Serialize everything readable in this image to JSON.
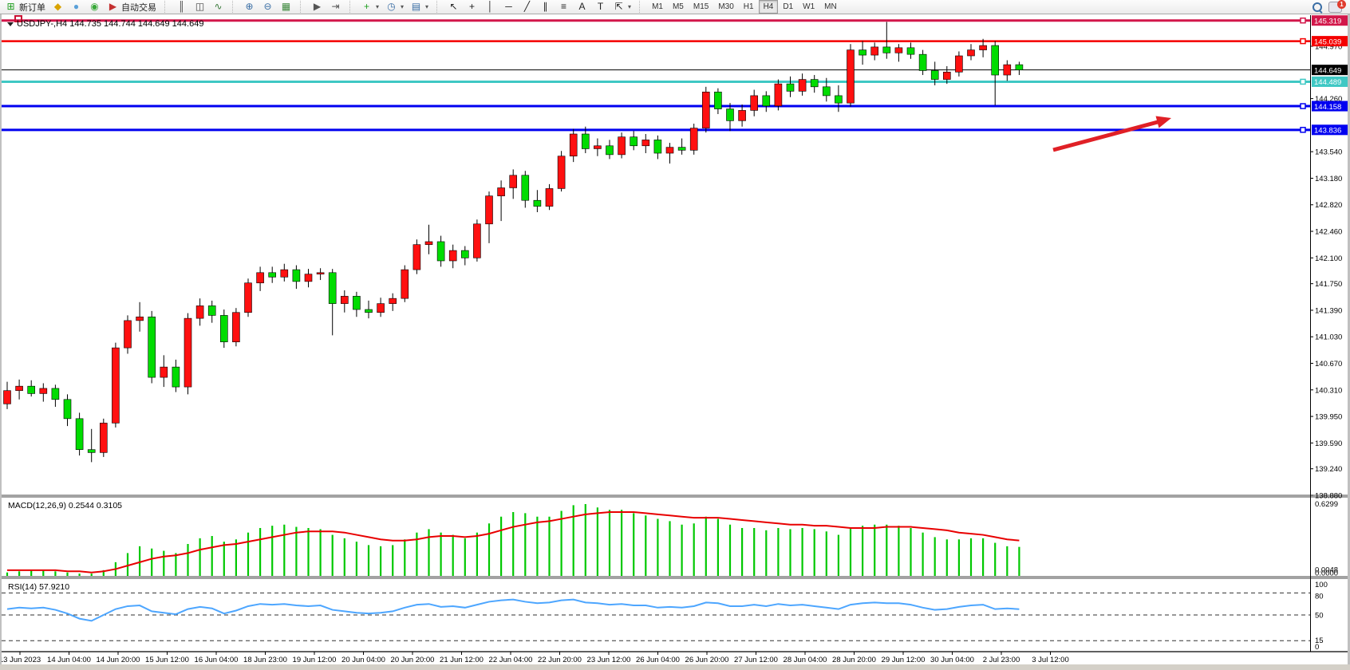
{
  "toolbar": {
    "groups": [
      {
        "items": [
          {
            "name": "new-order",
            "icon": "new-order",
            "label": "新订单"
          },
          {
            "name": "metaeditor",
            "icon": "metaeditor"
          },
          {
            "name": "community",
            "icon": "community"
          },
          {
            "name": "signals",
            "icon": "signals"
          },
          {
            "name": "autotrading",
            "icon": "autotrading",
            "label": "自动交易"
          }
        ]
      },
      {
        "items": [
          {
            "name": "bar-chart",
            "icon": "bar-chart"
          },
          {
            "name": "candlestick-chart",
            "icon": "candle-chart"
          },
          {
            "name": "line-chart",
            "icon": "line-chart"
          }
        ]
      },
      {
        "items": [
          {
            "name": "zoom-in",
            "icon": "zoom-in"
          },
          {
            "name": "zoom-out",
            "icon": "zoom-out"
          },
          {
            "name": "tile-windows",
            "icon": "tile"
          }
        ]
      },
      {
        "items": [
          {
            "name": "auto-scroll",
            "icon": "auto-scroll"
          },
          {
            "name": "chart-shift",
            "icon": "chart-shift"
          }
        ]
      },
      {
        "items": [
          {
            "name": "indicators",
            "icon": "indicators",
            "dropdown": true
          },
          {
            "name": "periods",
            "icon": "clock",
            "dropdown": true
          },
          {
            "name": "templates",
            "icon": "template",
            "dropdown": true
          }
        ]
      },
      {
        "items": [
          {
            "name": "cursor",
            "icon": "cursor"
          },
          {
            "name": "crosshair",
            "icon": "crosshair"
          },
          {
            "name": "vertical-line",
            "icon": "vline"
          },
          {
            "name": "horizontal-line",
            "icon": "hline"
          },
          {
            "name": "trendline",
            "icon": "trendline"
          },
          {
            "name": "equidistant-channel",
            "icon": "channel"
          },
          {
            "name": "fibonacci",
            "icon": "fibo"
          },
          {
            "name": "text",
            "icon": "text-a"
          },
          {
            "name": "text-label",
            "icon": "text-t"
          },
          {
            "name": "arrows",
            "icon": "arrows",
            "dropdown": true
          }
        ]
      }
    ],
    "timeframes": [
      "M1",
      "M5",
      "M15",
      "M30",
      "H1",
      "H4",
      "D1",
      "W1",
      "MN"
    ],
    "active_timeframe": "H4",
    "notification_badge": "1"
  },
  "chart": {
    "title": "USDJPY-,H4  144.735 144.744 144.649 144.649",
    "symbol": "USDJPY-",
    "timeframe": "H4",
    "quote_open": "144.735",
    "quote_high": "144.744",
    "quote_low": "144.649",
    "quote_close": "144.649"
  },
  "price_axis": {
    "ticks": [
      144.97,
      144.26,
      143.54,
      143.18,
      142.82,
      142.46,
      142.1,
      141.75,
      141.39,
      141.03,
      140.67,
      140.31,
      139.95,
      139.59,
      139.24,
      138.88
    ],
    "levels": [
      {
        "value": 145.319,
        "label": "145.319",
        "color": "#D2174A",
        "width": 3,
        "marker": true
      },
      {
        "value": 145.039,
        "label": "145.039",
        "color": "#F40000",
        "width": 2.5,
        "marker": true
      },
      {
        "value": 144.649,
        "label": "144.649",
        "color": "#000000",
        "width": 1,
        "marker": false
      },
      {
        "value": 144.489,
        "label": "144.489",
        "color": "#3FC8C4",
        "width": 3,
        "marker": true
      },
      {
        "value": 144.158,
        "label": "144.158",
        "color": "#0000F0",
        "width": 3,
        "marker": true
      },
      {
        "value": 143.836,
        "label": "143.836",
        "color": "#0000F0",
        "width": 3,
        "marker": true
      }
    ]
  },
  "chart_data": {
    "type": "candlestick",
    "title": "USDJPY- H4",
    "up_color": "#FF1010",
    "down_color": "#00DC00",
    "candles": [
      [
        140.12,
        140.42,
        140.05,
        140.3
      ],
      [
        140.3,
        140.45,
        140.18,
        140.36
      ],
      [
        140.36,
        140.44,
        140.22,
        140.26
      ],
      [
        140.26,
        140.4,
        140.15,
        140.33
      ],
      [
        140.33,
        140.38,
        140.08,
        140.18
      ],
      [
        140.18,
        140.25,
        139.82,
        139.92
      ],
      [
        139.92,
        140.0,
        139.42,
        139.5
      ],
      [
        139.5,
        139.78,
        139.33,
        139.46
      ],
      [
        139.46,
        139.92,
        139.4,
        139.86
      ],
      [
        139.86,
        140.95,
        139.8,
        140.88
      ],
      [
        140.88,
        141.32,
        140.8,
        141.25
      ],
      [
        141.25,
        141.5,
        141.1,
        141.3
      ],
      [
        141.3,
        141.38,
        140.4,
        140.48
      ],
      [
        140.48,
        140.78,
        140.35,
        140.62
      ],
      [
        140.62,
        140.72,
        140.28,
        140.35
      ],
      [
        140.35,
        141.35,
        140.25,
        141.28
      ],
      [
        141.28,
        141.55,
        141.18,
        141.45
      ],
      [
        141.45,
        141.52,
        141.22,
        141.32
      ],
      [
        141.32,
        141.4,
        140.88,
        140.96
      ],
      [
        140.96,
        141.42,
        140.9,
        141.36
      ],
      [
        141.36,
        141.82,
        141.3,
        141.76
      ],
      [
        141.76,
        141.98,
        141.65,
        141.9
      ],
      [
        141.9,
        141.98,
        141.76,
        141.84
      ],
      [
        141.84,
        142.02,
        141.78,
        141.94
      ],
      [
        141.94,
        142.0,
        141.68,
        141.78
      ],
      [
        141.78,
        141.95,
        141.7,
        141.88
      ],
      [
        141.88,
        141.96,
        141.8,
        141.9
      ],
      [
        141.9,
        141.95,
        141.05,
        141.48
      ],
      [
        141.48,
        141.66,
        141.36,
        141.58
      ],
      [
        141.58,
        141.64,
        141.3,
        141.4
      ],
      [
        141.4,
        141.52,
        141.28,
        141.36
      ],
      [
        141.36,
        141.56,
        141.3,
        141.48
      ],
      [
        141.48,
        141.62,
        141.38,
        141.55
      ],
      [
        141.55,
        142.0,
        141.5,
        141.94
      ],
      [
        141.94,
        142.35,
        141.88,
        142.28
      ],
      [
        142.28,
        142.55,
        142.15,
        142.32
      ],
      [
        142.32,
        142.4,
        141.98,
        142.06
      ],
      [
        142.06,
        142.28,
        141.96,
        142.2
      ],
      [
        142.2,
        142.26,
        142.0,
        142.1
      ],
      [
        142.1,
        142.62,
        142.05,
        142.56
      ],
      [
        142.56,
        143.0,
        142.3,
        142.94
      ],
      [
        142.94,
        143.15,
        142.6,
        143.05
      ],
      [
        143.05,
        143.3,
        142.9,
        143.22
      ],
      [
        143.22,
        143.28,
        142.78,
        142.88
      ],
      [
        142.88,
        143.02,
        142.72,
        142.8
      ],
      [
        142.8,
        143.1,
        142.75,
        143.04
      ],
      [
        143.04,
        143.55,
        143.0,
        143.48
      ],
      [
        143.48,
        143.85,
        143.4,
        143.78
      ],
      [
        143.78,
        143.88,
        143.52,
        143.58
      ],
      [
        143.58,
        143.72,
        143.48,
        143.62
      ],
      [
        143.62,
        143.7,
        143.44,
        143.5
      ],
      [
        143.5,
        143.8,
        143.45,
        143.74
      ],
      [
        143.74,
        143.82,
        143.56,
        143.62
      ],
      [
        143.62,
        143.78,
        143.52,
        143.7
      ],
      [
        143.7,
        143.76,
        143.44,
        143.52
      ],
      [
        143.52,
        143.66,
        143.38,
        143.6
      ],
      [
        143.6,
        143.72,
        143.5,
        143.56
      ],
      [
        143.56,
        143.92,
        143.5,
        143.86
      ],
      [
        143.86,
        144.42,
        143.8,
        144.35
      ],
      [
        144.35,
        144.4,
        144.05,
        144.12
      ],
      [
        144.12,
        144.2,
        143.82,
        143.96
      ],
      [
        143.96,
        144.18,
        143.88,
        144.1
      ],
      [
        144.1,
        144.38,
        144.02,
        144.3
      ],
      [
        144.3,
        144.36,
        144.08,
        144.16
      ],
      [
        144.16,
        144.52,
        144.1,
        144.46
      ],
      [
        144.46,
        144.56,
        144.28,
        144.36
      ],
      [
        144.36,
        144.6,
        144.3,
        144.52
      ],
      [
        144.52,
        144.58,
        144.34,
        144.42
      ],
      [
        144.42,
        144.54,
        144.22,
        144.3
      ],
      [
        144.3,
        144.44,
        144.08,
        144.2
      ],
      [
        144.2,
        145.0,
        144.15,
        144.92
      ],
      [
        144.92,
        145.04,
        144.72,
        144.85
      ],
      [
        144.85,
        145.02,
        144.78,
        144.96
      ],
      [
        144.96,
        145.3,
        144.8,
        144.88
      ],
      [
        144.88,
        145.0,
        144.76,
        144.95
      ],
      [
        144.95,
        145.02,
        144.8,
        144.86
      ],
      [
        144.86,
        144.92,
        144.58,
        144.64
      ],
      [
        144.64,
        144.76,
        144.44,
        144.52
      ],
      [
        144.52,
        144.7,
        144.46,
        144.62
      ],
      [
        144.62,
        144.9,
        144.56,
        144.84
      ],
      [
        144.84,
        145.0,
        144.78,
        144.92
      ],
      [
        144.92,
        145.07,
        144.82,
        144.98
      ],
      [
        144.98,
        145.04,
        144.17,
        144.58
      ],
      [
        144.58,
        144.78,
        144.5,
        144.72
      ],
      [
        144.72,
        144.76,
        144.58,
        144.649
      ]
    ],
    "macd": {
      "label": "MACD(12,26,9) 0.2544 0.3105",
      "value": 0.2544,
      "signal_value": 0.3105,
      "axis_max": "0.6299",
      "axis_bottom": [
        "0.0048",
        "0.0000"
      ],
      "hist_color": "#00C800",
      "signal_color": "#E80000",
      "histogram": [
        0.03,
        0.04,
        0.05,
        0.05,
        0.04,
        0.03,
        0.02,
        0.02,
        0.05,
        0.12,
        0.2,
        0.26,
        0.24,
        0.22,
        0.2,
        0.28,
        0.33,
        0.35,
        0.3,
        0.32,
        0.38,
        0.42,
        0.44,
        0.45,
        0.43,
        0.42,
        0.41,
        0.36,
        0.33,
        0.3,
        0.27,
        0.26,
        0.27,
        0.32,
        0.38,
        0.41,
        0.38,
        0.36,
        0.33,
        0.38,
        0.46,
        0.52,
        0.56,
        0.55,
        0.52,
        0.52,
        0.57,
        0.62,
        0.63,
        0.6,
        0.58,
        0.58,
        0.55,
        0.53,
        0.5,
        0.48,
        0.45,
        0.46,
        0.52,
        0.5,
        0.45,
        0.42,
        0.42,
        0.4,
        0.42,
        0.41,
        0.42,
        0.41,
        0.39,
        0.36,
        0.42,
        0.44,
        0.45,
        0.45,
        0.44,
        0.42,
        0.38,
        0.34,
        0.32,
        0.32,
        0.33,
        0.33,
        0.29,
        0.26,
        0.2544
      ],
      "signal": [
        0.05,
        0.05,
        0.05,
        0.05,
        0.05,
        0.04,
        0.04,
        0.03,
        0.04,
        0.06,
        0.09,
        0.12,
        0.15,
        0.17,
        0.18,
        0.2,
        0.23,
        0.25,
        0.27,
        0.28,
        0.3,
        0.32,
        0.34,
        0.36,
        0.38,
        0.39,
        0.39,
        0.39,
        0.38,
        0.36,
        0.34,
        0.32,
        0.31,
        0.31,
        0.32,
        0.34,
        0.35,
        0.35,
        0.34,
        0.35,
        0.37,
        0.4,
        0.43,
        0.45,
        0.47,
        0.48,
        0.5,
        0.52,
        0.54,
        0.55,
        0.56,
        0.56,
        0.56,
        0.55,
        0.54,
        0.53,
        0.52,
        0.51,
        0.51,
        0.51,
        0.5,
        0.49,
        0.48,
        0.47,
        0.46,
        0.45,
        0.45,
        0.44,
        0.44,
        0.43,
        0.42,
        0.42,
        0.42,
        0.43,
        0.43,
        0.43,
        0.42,
        0.41,
        0.4,
        0.38,
        0.37,
        0.36,
        0.34,
        0.32,
        0.3105
      ]
    },
    "rsi": {
      "label": "RSI(14) 57.9210",
      "value": 57.921,
      "color": "#4DA6FF",
      "levels": [
        80,
        50,
        15
      ],
      "axis_labels": [
        "100",
        "80",
        "50",
        "15",
        "0"
      ],
      "values": [
        58,
        60,
        59,
        60,
        57,
        52,
        45,
        42,
        50,
        58,
        62,
        63,
        55,
        53,
        51,
        58,
        61,
        59,
        52,
        56,
        62,
        65,
        64,
        65,
        63,
        62,
        63,
        57,
        55,
        53,
        52,
        53,
        55,
        60,
        64,
        65,
        61,
        62,
        60,
        64,
        68,
        70,
        71,
        68,
        66,
        67,
        70,
        71,
        67,
        66,
        64,
        65,
        63,
        63,
        60,
        61,
        60,
        62,
        67,
        66,
        62,
        62,
        64,
        62,
        65,
        63,
        64,
        62,
        60,
        58,
        64,
        66,
        67,
        66,
        66,
        64,
        60,
        57,
        58,
        61,
        63,
        64,
        58,
        59,
        57.92
      ]
    },
    "time_labels": [
      "13 Jun 2023",
      "14 Jun 04:00",
      "14 Jun 20:00",
      "15 Jun 12:00",
      "16 Jun 04:00",
      "18 Jun 23:00",
      "19 Jun 12:00",
      "20 Jun 04:00",
      "20 Jun 20:00",
      "21 Jun 12:00",
      "22 Jun 04:00",
      "22 Jun 20:00",
      "23 Jun 12:00",
      "26 Jun 04:00",
      "26 Jun 20:00",
      "27 Jun 12:00",
      "28 Jun 04:00",
      "28 Jun 20:00",
      "29 Jun 12:00",
      "30 Jun 04:00",
      "2 Jul 23:00",
      "3 Jul 12:00"
    ]
  },
  "annotation": {
    "arrow_color": "#E02026"
  }
}
